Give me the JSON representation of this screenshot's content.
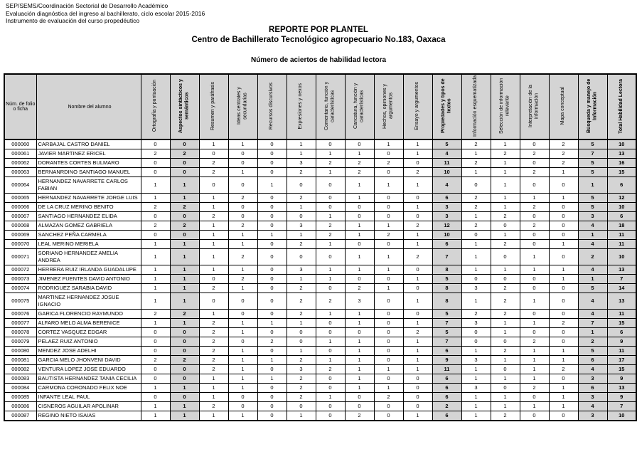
{
  "header": {
    "line1": "SEP/SEMS/Coordinación Sectorial de Desarrollo Académico",
    "line2": "Evaluación diagnóstica del ingreso al bachillerato, ciclo escolar 2015-2016",
    "line3": "Instrumento de evaluación del curso propedéutico",
    "report_title": "REPORTE POR PLANTEL",
    "campus_title": "Centro de Bachillerato Tecnológico agropecuario No.183, Oaxaca",
    "table_title": "Número de aciertos de habilidad lectora"
  },
  "colors": {
    "header_bg": "#d4d4d4",
    "subtotal_bg": "#d4d4d4",
    "border": "#000000"
  },
  "table": {
    "id_col_header": "Núm. de folio o ficha",
    "name_col_header": "Nombre del alumno",
    "score_columns": [
      {
        "label": "Ortografía y puntuación",
        "bold": false
      },
      {
        "label": "Aspectos sintácticos y semánticos",
        "bold": true
      },
      {
        "label": "Resumen y paráfrasis",
        "bold": false
      },
      {
        "label": "Ideas centrales y secundarias",
        "bold": false
      },
      {
        "label": "Recursos discursivos",
        "bold": false
      },
      {
        "label": "Expresiones y nexos",
        "bold": false
      },
      {
        "label": "Comentario, función y características",
        "bold": false
      },
      {
        "label": "Caricatura, función y características",
        "bold": false
      },
      {
        "label": "Hechos, opiniones y argumentos",
        "bold": false
      },
      {
        "label": "Ensayo y argumentos",
        "bold": false
      },
      {
        "label": "Propiedades y tipos de textos",
        "bold": true
      },
      {
        "label": "Información esquematizada",
        "bold": false
      },
      {
        "label": "Selección de información relevante",
        "bold": false
      },
      {
        "label": "Interpretación de la información",
        "bold": false
      },
      {
        "label": "Mapa conceptual",
        "bold": false
      },
      {
        "label": "Búsqueda y manejo de Información",
        "bold": true
      },
      {
        "label": "Total Habilidad Lectora",
        "bold": true
      }
    ],
    "subtotal_indices": [
      1,
      10,
      15,
      16
    ],
    "rows": [
      {
        "folio": "000060",
        "name": "CARBAJAL CASTRO DANIEL",
        "scores": [
          0,
          0,
          1,
          1,
          0,
          1,
          0,
          0,
          1,
          1,
          5,
          2,
          1,
          0,
          2,
          5,
          10
        ]
      },
      {
        "folio": "000061",
        "name": "JAVIER MARTINEZ ERICEL",
        "scores": [
          2,
          2,
          0,
          0,
          0,
          1,
          1,
          1,
          0,
          1,
          4,
          1,
          2,
          2,
          2,
          7,
          13
        ]
      },
      {
        "folio": "000062",
        "name": "DORANTES CORTES BULMARO",
        "scores": [
          0,
          0,
          2,
          0,
          0,
          3,
          2,
          2,
          2,
          0,
          11,
          2,
          1,
          0,
          2,
          5,
          16
        ]
      },
      {
        "folio": "000063",
        "name": "BERNANRDINO SANTIAGO MANUEL",
        "scores": [
          0,
          0,
          2,
          1,
          0,
          2,
          1,
          2,
          0,
          2,
          10,
          1,
          1,
          2,
          1,
          5,
          15
        ]
      },
      {
        "folio": "000064",
        "name": "HERNANDEZ NAVARRETE CARLOS FABIAN",
        "scores": [
          1,
          1,
          0,
          0,
          1,
          0,
          0,
          1,
          1,
          1,
          4,
          0,
          1,
          0,
          0,
          1,
          6
        ]
      },
      {
        "folio": "000065",
        "name": "HERNANDEZ NAVARRETE JORGE LUIS",
        "scores": [
          1,
          1,
          1,
          2,
          0,
          2,
          0,
          1,
          0,
          0,
          6,
          2,
          1,
          1,
          1,
          5,
          12
        ]
      },
      {
        "folio": "000066",
        "name": "DE LA CRUZ MERINO BENITO",
        "scores": [
          2,
          2,
          1,
          0,
          0,
          1,
          0,
          0,
          0,
          1,
          3,
          2,
          1,
          2,
          0,
          5,
          10
        ]
      },
      {
        "folio": "000067",
        "name": "SANTIAGO HERNANDEZ ELIDA",
        "scores": [
          0,
          0,
          2,
          0,
          0,
          0,
          1,
          0,
          0,
          0,
          3,
          1,
          2,
          0,
          0,
          3,
          6
        ]
      },
      {
        "folio": "000068",
        "name": "ALMAZAN GOMEZ GABRIELA",
        "scores": [
          2,
          2,
          1,
          2,
          0,
          3,
          2,
          1,
          1,
          2,
          12,
          2,
          0,
          2,
          0,
          4,
          18
        ]
      },
      {
        "folio": "000069",
        "name": "SANCHEZ PEÑA CARMELA",
        "scores": [
          0,
          0,
          1,
          1,
          1,
          1,
          2,
          1,
          2,
          1,
          10,
          0,
          1,
          0,
          0,
          1,
          11
        ]
      },
      {
        "folio": "000070",
        "name": "LEAL MERINO MERIELA",
        "scores": [
          1,
          1,
          1,
          1,
          0,
          2,
          1,
          0,
          0,
          1,
          6,
          1,
          2,
          0,
          1,
          4,
          11
        ]
      },
      {
        "folio": "000071",
        "name": "SORIANO HERNANDEZ AMELIA ANDREA",
        "scores": [
          1,
          1,
          1,
          2,
          0,
          0,
          0,
          1,
          1,
          2,
          7,
          1,
          0,
          1,
          0,
          2,
          10
        ]
      },
      {
        "folio": "000072",
        "name": "HERRERA RUIZ IRLANDA GUADALUPE",
        "scores": [
          1,
          1,
          1,
          1,
          0,
          3,
          1,
          1,
          1,
          0,
          8,
          1,
          1,
          1,
          1,
          4,
          13
        ]
      },
      {
        "folio": "000073",
        "name": "JIMENEZ FUENTES DAVID ANTONIO",
        "scores": [
          1,
          1,
          0,
          2,
          0,
          1,
          1,
          0,
          0,
          1,
          5,
          0,
          0,
          0,
          1,
          1,
          7
        ]
      },
      {
        "folio": "000074",
        "name": "RODRIGUEZ SARABIA DAVID",
        "scores": [
          1,
          1,
          2,
          1,
          0,
          2,
          0,
          2,
          1,
          0,
          8,
          3,
          2,
          0,
          0,
          5,
          14
        ]
      },
      {
        "folio": "000075",
        "name": "MARTINEZ HERNANDEZ JOSUE IGNACIO",
        "scores": [
          1,
          1,
          0,
          0,
          0,
          2,
          2,
          3,
          0,
          1,
          8,
          1,
          2,
          1,
          0,
          4,
          13
        ]
      },
      {
        "folio": "000076",
        "name": "GARICA FLORENCIO RAYMUNDO",
        "scores": [
          2,
          2,
          1,
          0,
          0,
          2,
          1,
          1,
          0,
          0,
          5,
          2,
          2,
          0,
          0,
          4,
          11
        ]
      },
      {
        "folio": "000077",
        "name": "ALFARO MELO ALMA BERENICE",
        "scores": [
          1,
          1,
          2,
          1,
          1,
          1,
          0,
          1,
          0,
          1,
          7,
          3,
          1,
          1,
          2,
          7,
          15
        ]
      },
      {
        "folio": "000078",
        "name": "CORTEZ VASQUEZ EDGAR",
        "scores": [
          0,
          0,
          2,
          1,
          0,
          0,
          0,
          0,
          0,
          2,
          5,
          0,
          1,
          0,
          0,
          1,
          6
        ]
      },
      {
        "folio": "000079",
        "name": "PELAEZ RUIZ ANTONIO",
        "scores": [
          0,
          0,
          2,
          0,
          2,
          0,
          1,
          1,
          0,
          1,
          7,
          0,
          0,
          2,
          0,
          2,
          9
        ]
      },
      {
        "folio": "000080",
        "name": "MENDEZ JOSE ADELHI",
        "scores": [
          0,
          0,
          2,
          1,
          0,
          1,
          0,
          1,
          0,
          1,
          6,
          1,
          2,
          1,
          1,
          5,
          11
        ]
      },
      {
        "folio": "000081",
        "name": "GARCIA MELO JHONVENI DAVID",
        "scores": [
          2,
          2,
          2,
          1,
          1,
          2,
          1,
          1,
          0,
          1,
          9,
          3,
          1,
          1,
          1,
          6,
          17
        ]
      },
      {
        "folio": "000082",
        "name": "VENTURA LOPEZ JOSE EDUARDO",
        "scores": [
          0,
          0,
          2,
          1,
          0,
          3,
          2,
          1,
          1,
          1,
          11,
          1,
          0,
          1,
          2,
          4,
          15
        ]
      },
      {
        "folio": "000083",
        "name": "BAUTISTA HERNANDEZ TANIA CECILIA",
        "scores": [
          0,
          0,
          1,
          1,
          1,
          2,
          0,
          1,
          0,
          0,
          6,
          1,
          1,
          1,
          0,
          3,
          9
        ]
      },
      {
        "folio": "000084",
        "name": "CARMONA CORONADO FELIX NOE",
        "scores": [
          1,
          1,
          1,
          1,
          0,
          2,
          0,
          1,
          1,
          0,
          6,
          3,
          0,
          2,
          1,
          6,
          13
        ]
      },
      {
        "folio": "000085",
        "name": "INFANTE LEAL PAUL",
        "scores": [
          0,
          0,
          1,
          0,
          0,
          2,
          1,
          0,
          2,
          0,
          6,
          1,
          1,
          0,
          1,
          3,
          9
        ]
      },
      {
        "folio": "000086",
        "name": "CISNEROS AGUILAR APOLINAR",
        "scores": [
          1,
          1,
          2,
          0,
          0,
          0,
          0,
          0,
          0,
          0,
          2,
          1,
          1,
          1,
          1,
          4,
          7
        ]
      },
      {
        "folio": "000087",
        "name": "REGINO NIETO ISAIAS",
        "scores": [
          1,
          1,
          1,
          1,
          0,
          1,
          0,
          2,
          0,
          1,
          6,
          1,
          2,
          0,
          0,
          3,
          10
        ]
      }
    ]
  }
}
